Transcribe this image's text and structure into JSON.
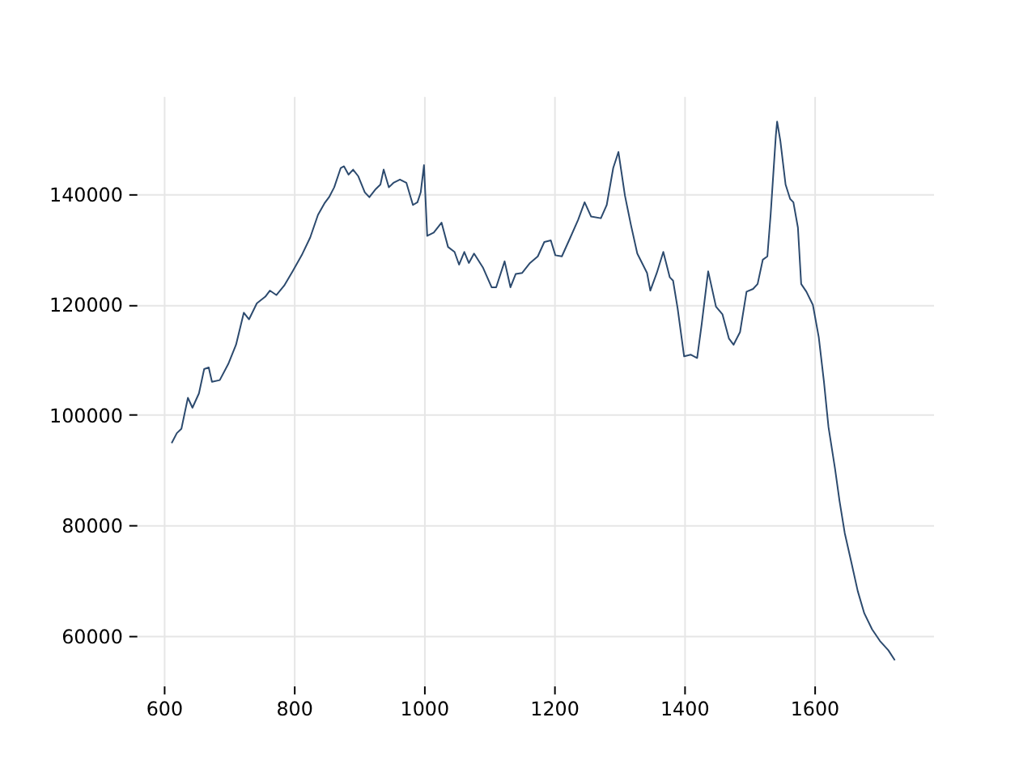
{
  "chart_data": {
    "type": "line",
    "xlim": [
      558,
      1783
    ],
    "ylim": [
      51000,
      157700
    ],
    "xticks": [
      600,
      800,
      1000,
      1200,
      1400,
      1600
    ],
    "yticks": [
      60000,
      80000,
      100000,
      120000,
      140000
    ],
    "grid": true,
    "legend": false,
    "series": [
      {
        "color": "#2c4a6e",
        "x": [
          612,
          620,
          627,
          637,
          644,
          654,
          662,
          669,
          674,
          686,
          699,
          711,
          723,
          731,
          743,
          756,
          763,
          773,
          785,
          798,
          812,
          825,
          837,
          847,
          854,
          862,
          872,
          877,
          884,
          891,
          899,
          909,
          916,
          926,
          933,
          938,
          946,
          953,
          963,
          973,
          983,
          990,
          995,
          1000,
          1005,
          1015,
          1027,
          1037,
          1047,
          1054,
          1062,
          1069,
          1077,
          1091,
          1104,
          1111,
          1124,
          1133,
          1141,
          1151,
          1163,
          1175,
          1185,
          1195,
          1202,
          1212,
          1225,
          1237,
          1247,
          1257,
          1272,
          1281,
          1291,
          1299,
          1309,
          1318,
          1328,
          1343,
          1348,
          1358,
          1368,
          1378,
          1383,
          1390,
          1400,
          1410,
          1420,
          1427,
          1437,
          1449,
          1459,
          1469,
          1476,
          1486,
          1496,
          1506,
          1513,
          1521,
          1528,
          1533,
          1541,
          1543,
          1548,
          1556,
          1563,
          1568,
          1575,
          1580,
          1588,
          1598,
          1607,
          1615,
          1622,
          1632,
          1639,
          1647,
          1657,
          1667,
          1677,
          1689,
          1701,
          1714,
          1724
        ],
        "values": [
          94900,
          96700,
          97500,
          103100,
          101300,
          103900,
          108300,
          108600,
          106000,
          106300,
          109200,
          112700,
          118500,
          117300,
          120200,
          121400,
          122500,
          121700,
          123400,
          126000,
          128900,
          132100,
          136200,
          138300,
          139400,
          141200,
          144700,
          145000,
          143500,
          144400,
          143200,
          140300,
          139400,
          140900,
          141700,
          144400,
          141200,
          142000,
          142600,
          142000,
          138000,
          138500,
          140300,
          145200,
          132400,
          133000,
          134800,
          130400,
          129500,
          127200,
          129500,
          127500,
          129200,
          126600,
          123100,
          123100,
          127800,
          123100,
          125500,
          125700,
          127500,
          128700,
          131300,
          131600,
          128900,
          128700,
          132100,
          135300,
          138500,
          135900,
          135600,
          138000,
          144700,
          147600,
          139700,
          134500,
          129200,
          125700,
          122500,
          125700,
          129500,
          124900,
          124300,
          119300,
          110600,
          110900,
          110300,
          116400,
          126000,
          119600,
          118200,
          113800,
          112700,
          115000,
          122300,
          122800,
          123700,
          128100,
          128700,
          136200,
          150500,
          153100,
          149600,
          141700,
          139100,
          138500,
          133900,
          123700,
          122300,
          119900,
          114100,
          106000,
          97800,
          90300,
          84400,
          78600,
          73400,
          68100,
          64100,
          61200,
          59100,
          57400,
          55600
        ]
      }
    ]
  }
}
